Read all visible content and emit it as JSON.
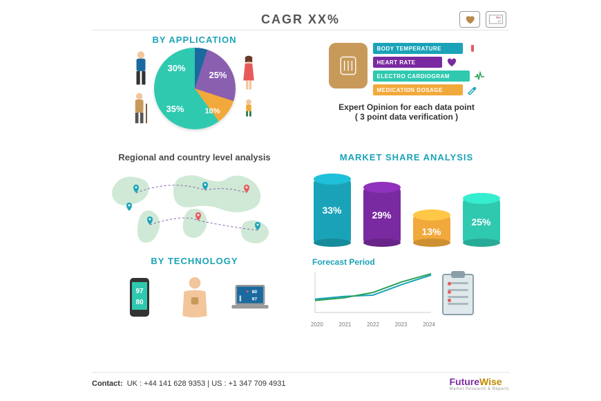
{
  "header": {
    "title": "CAGR XX%"
  },
  "application": {
    "title": "BY APPLICATION",
    "pie": {
      "type": "pie",
      "slices": [
        {
          "label": "30%",
          "value": 30,
          "color": "#1a6aa0"
        },
        {
          "label": "25%",
          "value": 25,
          "color": "#8a5fb0"
        },
        {
          "label": "10%",
          "value": 10,
          "color": "#f2a93b"
        },
        {
          "label": "35%",
          "value": 35,
          "color": "#2fc9b0"
        }
      ],
      "label_color": "#ffffff",
      "label_fontsize": 13
    },
    "people_colors": {
      "man": {
        "shirt": "#1a6aa0",
        "pants": "#333333",
        "skin": "#f2c59b"
      },
      "woman": {
        "dress": "#e85a5a",
        "skin": "#f2c59b",
        "hair": "#6a3a2a"
      },
      "elder": {
        "coat": "#c89a5a",
        "pants": "#555555",
        "skin": "#f2c59b",
        "cane": "#6a4a2a"
      },
      "child": {
        "shirt": "#f2a93b",
        "shorts": "#2a7a4a",
        "skin": "#f2c59b"
      }
    }
  },
  "datapoints": {
    "items": [
      {
        "label": "BODY TEMPERATURE",
        "color": "#1aa3b8",
        "width": 130,
        "icon": "thermometer",
        "icon_color": "#e85a5a"
      },
      {
        "label": "HEART RATE",
        "color": "#7a2aa0",
        "width": 100,
        "icon": "heart",
        "icon_color": "#7a2aa0"
      },
      {
        "label": "ELECTRO CARDIOGRAM",
        "color": "#2fc9b0",
        "width": 140,
        "icon": "ecg",
        "icon_color": "#2aa05a"
      },
      {
        "label": "MEDICATION DOSAGE",
        "color": "#f2a93b",
        "width": 130,
        "icon": "syringe",
        "icon_color": "#1aa3b8"
      }
    ],
    "chip_color": "#c89a5a",
    "note_line1": "Expert Opinion for each data point",
    "note_line2": "( 3 point data verification )"
  },
  "regional": {
    "title": "Regional and country level analysis",
    "map": {
      "land_color": "#cfe9d6",
      "pin_color": "#1aa3b8",
      "pin_alt_color": "#e85a5a",
      "line_color": "#8a5fb0"
    }
  },
  "market_share": {
    "title": "MARKET SHARE ANALYSIS",
    "type": "cylinder-bar",
    "bars": [
      {
        "label": "33%",
        "value": 33,
        "height": 92,
        "color": "#1aa3b8"
      },
      {
        "label": "29%",
        "value": 29,
        "height": 80,
        "color": "#7a2aa0"
      },
      {
        "label": "13%",
        "value": 13,
        "height": 40,
        "color": "#f2a93b"
      },
      {
        "label": "25%",
        "value": 25,
        "height": 64,
        "color": "#2fc9b0"
      }
    ],
    "label_color": "#ffffff",
    "label_fontsize": 14
  },
  "technology": {
    "title": "BY TECHNOLOGY",
    "phone": {
      "body": "#333333",
      "screen": "#2fc9b0",
      "num1": "97",
      "num2": "80"
    },
    "patient": {
      "skin": "#f2c59b",
      "chip": "#c89a5a"
    },
    "laptop": {
      "body": "#999999",
      "screen": "#1a6aa0",
      "num1": "80",
      "num2": "97",
      "heart": "#e85a5a"
    }
  },
  "forecast": {
    "title": "Forecast Period",
    "type": "line",
    "years": [
      "2020",
      "2021",
      "2022",
      "2023",
      "2024"
    ],
    "series": [
      {
        "color": "#1aa3b8",
        "points": [
          20,
          24,
          26,
          42,
          56
        ]
      },
      {
        "color": "#2aa05a",
        "points": [
          18,
          22,
          30,
          46,
          58
        ]
      }
    ],
    "ylim": [
      0,
      60
    ],
    "axis_color": "#cccccc",
    "line_width": 2
  },
  "footer": {
    "contact_label": "Contact:",
    "uk": "UK : +44 141 628 9353",
    "sep": "  |  ",
    "us": "US : +1 347 709 4931",
    "logo1": "Future",
    "logo2": "Wise",
    "logo_tag": "Market Research & Reports"
  }
}
